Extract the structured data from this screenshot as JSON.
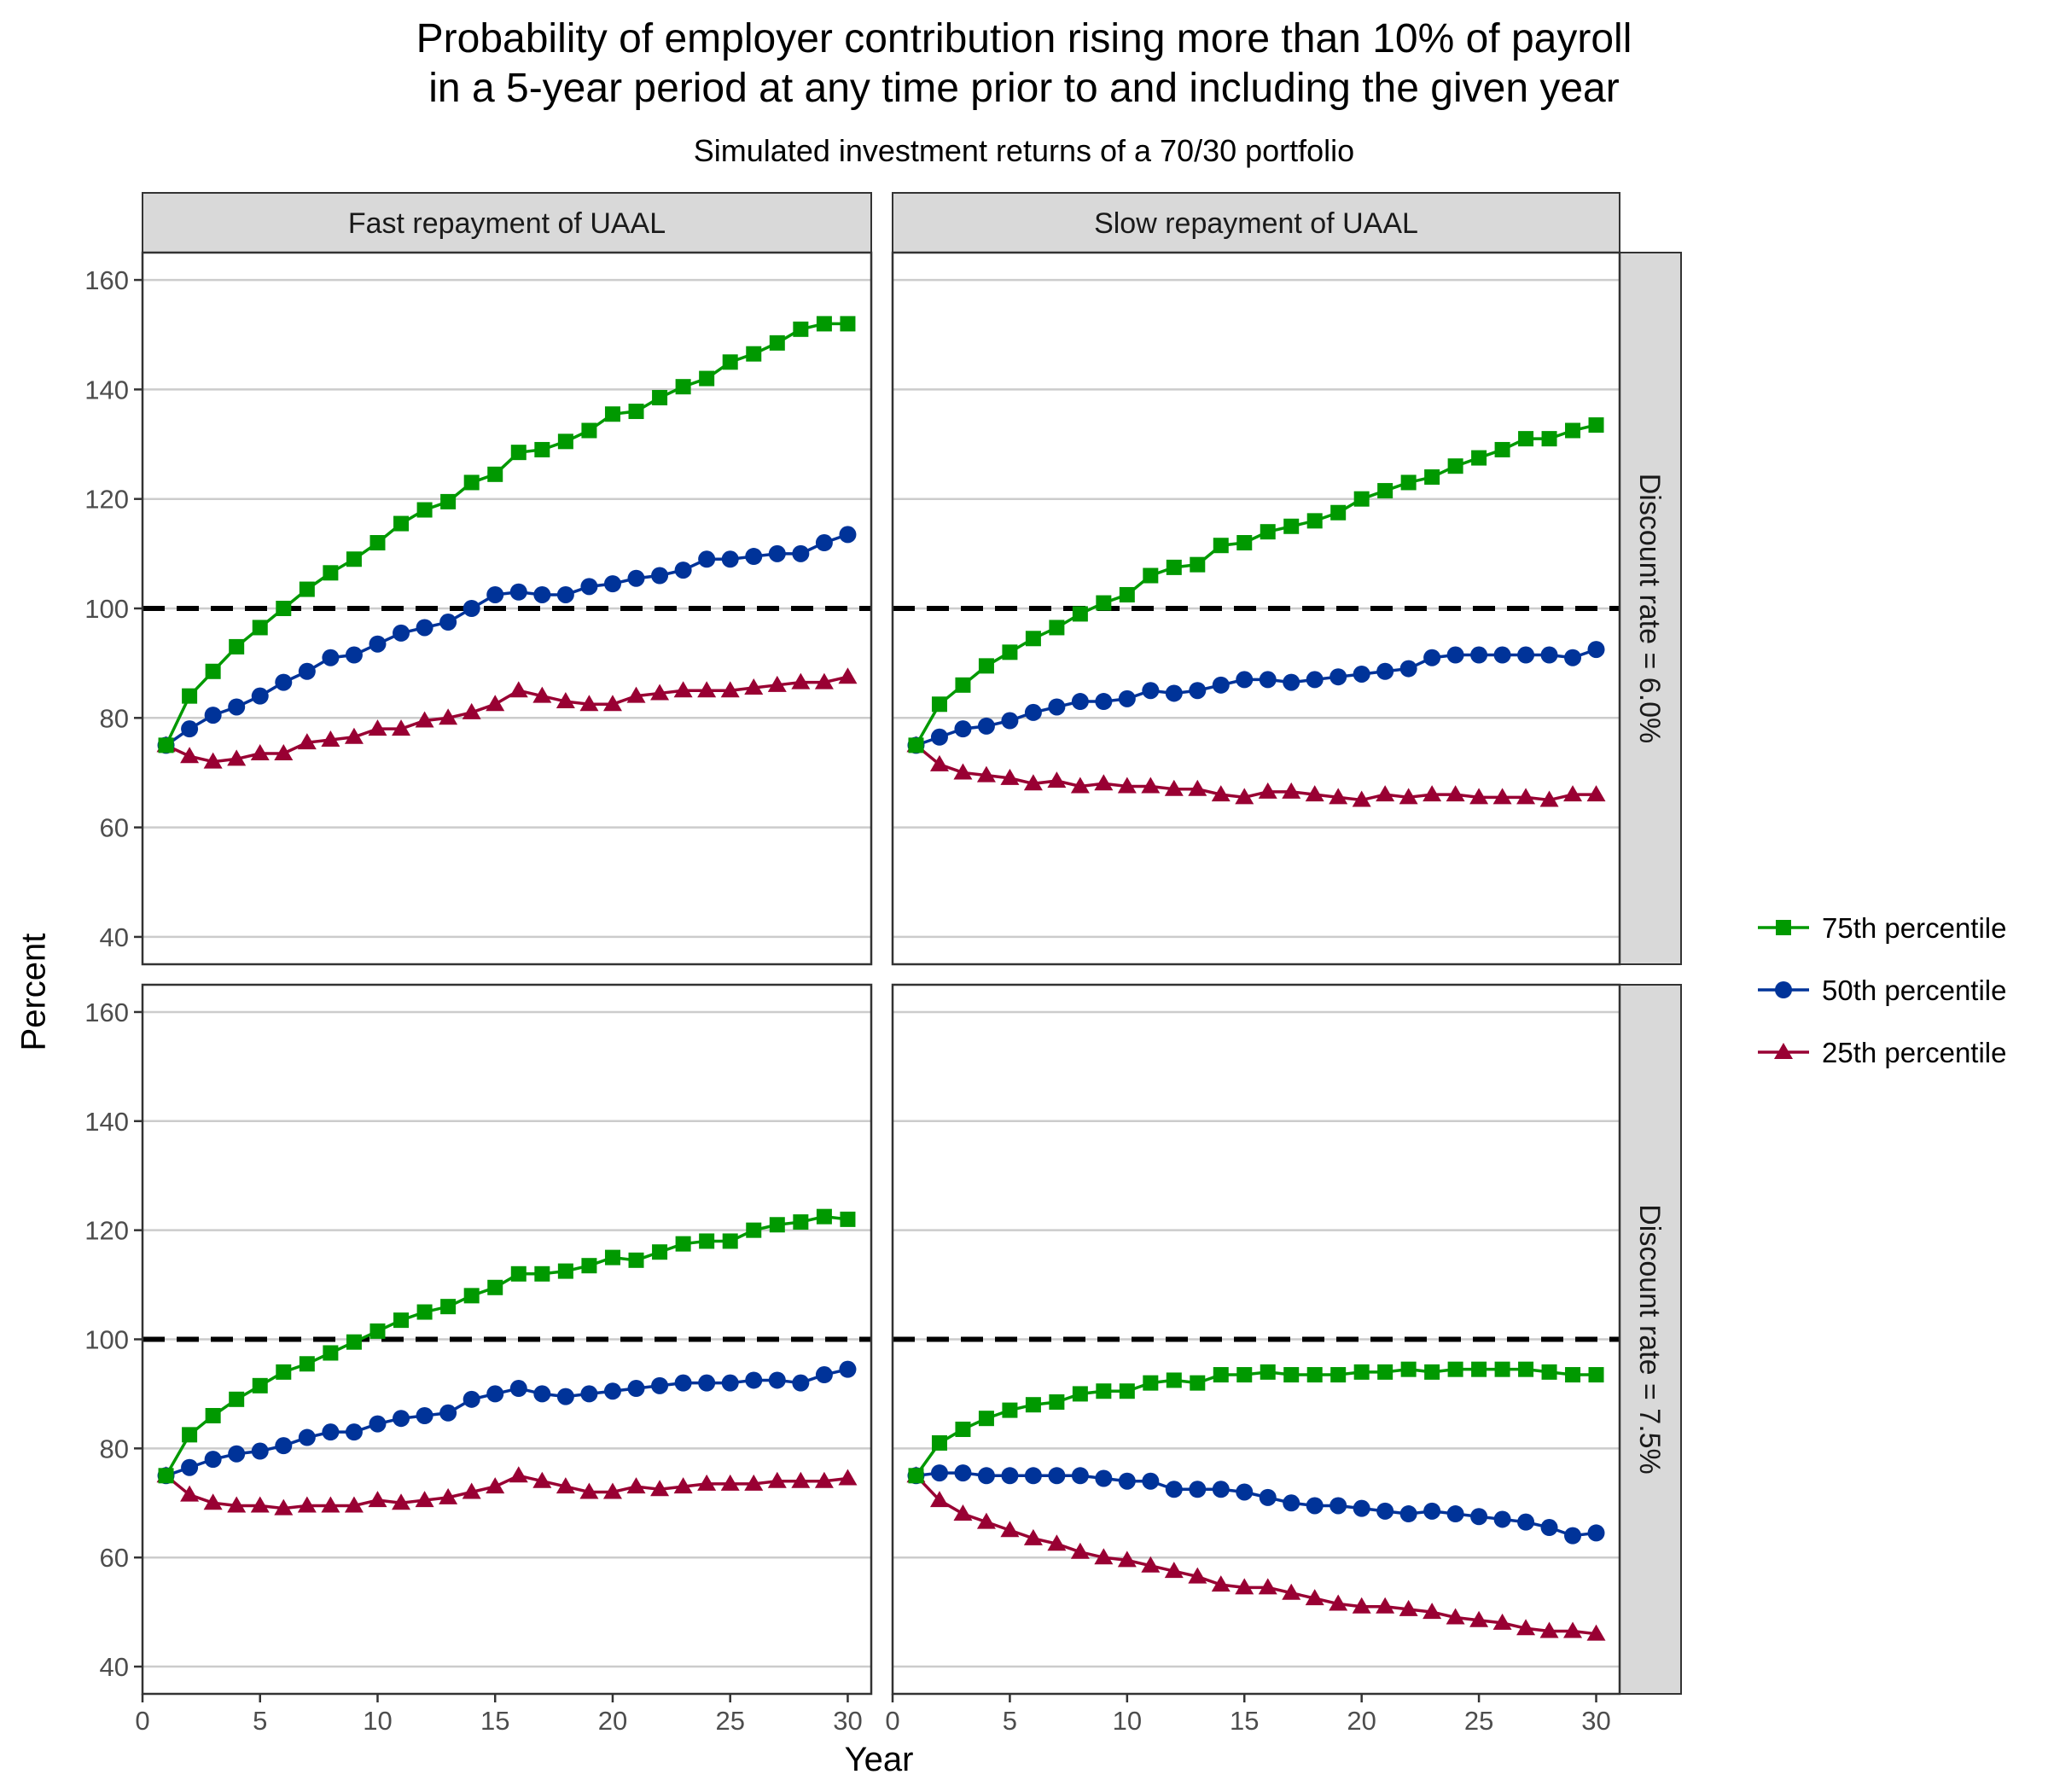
{
  "title_line1": "Probability of employer contribution rising more than 10% of payroll",
  "title_line2": "in a 5-year period at any time prior to and including the given year",
  "subtitle": "Simulated investment returns of a 70/30 portfolio",
  "xlabel": "Year",
  "ylabel": "Percent",
  "colors": {
    "p75": "#009900",
    "p50": "#003399",
    "p25": "#990033",
    "strip": "#d9d9d9",
    "grid": "#cccccc",
    "reference": "#000000"
  },
  "legend": {
    "position": "right",
    "items": [
      {
        "label": "75th percentile",
        "series": "p75",
        "color": "#009900",
        "marker": "square"
      },
      {
        "label": "50th percentile",
        "series": "p50",
        "color": "#003399",
        "marker": "circle"
      },
      {
        "label": "25th percentile",
        "series": "p25",
        "color": "#990033",
        "marker": "triangle"
      }
    ]
  },
  "chart_data": {
    "type": "line",
    "facet_cols": [
      "Fast repayment of UAAL",
      "Slow repayment of UAAL"
    ],
    "facet_rows": [
      "Discount rate = 6.0%",
      "Discount rate = 7.5%"
    ],
    "x": [
      1,
      2,
      3,
      4,
      5,
      6,
      7,
      8,
      9,
      10,
      11,
      12,
      13,
      14,
      15,
      16,
      17,
      18,
      19,
      20,
      21,
      22,
      23,
      24,
      25,
      26,
      27,
      28,
      29,
      30
    ],
    "xlim": [
      0,
      31
    ],
    "xticks": [
      0,
      5,
      10,
      15,
      20,
      25,
      30
    ],
    "ylim": [
      35,
      165
    ],
    "yticks": [
      40,
      60,
      80,
      100,
      120,
      140,
      160
    ],
    "reference_line": 100,
    "grid": "horizontal",
    "panels": [
      {
        "col": "Fast repayment of UAAL",
        "row": "Discount rate = 6.0%",
        "series": {
          "p75": [
            75,
            84,
            88.5,
            93,
            96.5,
            100,
            103.5,
            106.5,
            109,
            112,
            115.5,
            118,
            119.5,
            123,
            124.5,
            128.5,
            129,
            130.5,
            132.5,
            135.5,
            136,
            138.5,
            140.5,
            142,
            145,
            146.5,
            148.5,
            151,
            152,
            152
          ],
          "p50": [
            75,
            78,
            80.5,
            82,
            84,
            86.5,
            88.5,
            91,
            91.5,
            93.5,
            95.5,
            96.5,
            97.5,
            100,
            102.5,
            103,
            102.5,
            102.5,
            104,
            104.5,
            105.5,
            106,
            107,
            109,
            109,
            109.5,
            110,
            110,
            112,
            113.5
          ],
          "p25": [
            75,
            73,
            72,
            72.5,
            73.5,
            73.5,
            75.5,
            76,
            76.5,
            78,
            78,
            79.5,
            80,
            81,
            82.5,
            85,
            84,
            83,
            82.5,
            82.5,
            84,
            84.5,
            85,
            85,
            85,
            85.5,
            86,
            86.5,
            86.5,
            87.5
          ]
        }
      },
      {
        "col": "Slow repayment of UAAL",
        "row": "Discount rate = 6.0%",
        "series": {
          "p75": [
            75,
            82.5,
            86,
            89.5,
            92,
            94.5,
            96.5,
            99,
            101,
            102.5,
            106,
            107.5,
            108,
            111.5,
            112,
            114,
            115,
            116,
            117.5,
            120,
            121.5,
            123,
            124,
            126,
            127.5,
            129,
            131,
            131,
            132.5,
            133.5
          ],
          "p50": [
            75,
            76.5,
            78,
            78.5,
            79.5,
            81,
            82,
            83,
            83,
            83.5,
            85,
            84.5,
            85,
            86,
            87,
            87,
            86.5,
            87,
            87.5,
            88,
            88.5,
            89,
            91,
            91.5,
            91.5,
            91.5,
            91.5,
            91.5,
            91,
            92.5
          ],
          "p25": [
            75,
            71.5,
            70,
            69.5,
            69,
            68,
            68.5,
            67.5,
            68,
            67.5,
            67.5,
            67,
            67,
            66,
            65.5,
            66.5,
            66.5,
            66,
            65.5,
            65,
            66,
            65.5,
            66,
            66,
            65.5,
            65.5,
            65.5,
            65,
            66,
            66
          ]
        }
      },
      {
        "col": "Fast repayment of UAAL",
        "row": "Discount rate = 7.5%",
        "series": {
          "p75": [
            75,
            82.5,
            86,
            89,
            91.5,
            94,
            95.5,
            97.5,
            99.5,
            101.5,
            103.5,
            105,
            106,
            108,
            109.5,
            112,
            112,
            112.5,
            113.5,
            115,
            114.5,
            116,
            117.5,
            118,
            118,
            120,
            121,
            121.5,
            122.5,
            122
          ],
          "p50": [
            75,
            76.5,
            78,
            79,
            79.5,
            80.5,
            82,
            83,
            83,
            84.5,
            85.5,
            86,
            86.5,
            89,
            90,
            91,
            90,
            89.5,
            90,
            90.5,
            91,
            91.5,
            92,
            92,
            92,
            92.5,
            92.5,
            92,
            93.5,
            94.5
          ],
          "p25": [
            75,
            71.5,
            70,
            69.5,
            69.5,
            69,
            69.5,
            69.5,
            69.5,
            70.5,
            70,
            70.5,
            71,
            72,
            73,
            75,
            74,
            73,
            72,
            72,
            73,
            72.5,
            73,
            73.5,
            73.5,
            73.5,
            74,
            74,
            74,
            74.5
          ]
        }
      },
      {
        "col": "Slow repayment of UAAL",
        "row": "Discount rate = 7.5%",
        "series": {
          "p75": [
            75,
            81,
            83.5,
            85.5,
            87,
            88,
            88.5,
            90,
            90.5,
            90.5,
            92,
            92.5,
            92,
            93.5,
            93.5,
            94,
            93.5,
            93.5,
            93.5,
            94,
            94,
            94.5,
            94,
            94.5,
            94.5,
            94.5,
            94.5,
            94,
            93.5,
            93.5
          ],
          "p50": [
            75,
            75.5,
            75.5,
            75,
            75,
            75,
            75,
            75,
            74.5,
            74,
            74,
            72.5,
            72.5,
            72.5,
            72,
            71,
            70,
            69.5,
            69.5,
            69,
            68.5,
            68,
            68.5,
            68,
            67.5,
            67,
            66.5,
            65.5,
            64,
            64.5
          ],
          "p25": [
            75,
            70.5,
            68,
            66.5,
            65,
            63.5,
            62.5,
            61,
            60,
            59.5,
            58.5,
            57.5,
            56.5,
            55,
            54.5,
            54.5,
            53.5,
            52.5,
            51.5,
            51,
            51,
            50.5,
            50,
            49,
            48.5,
            48,
            47,
            46.5,
            46.5,
            46
          ]
        }
      }
    ]
  }
}
